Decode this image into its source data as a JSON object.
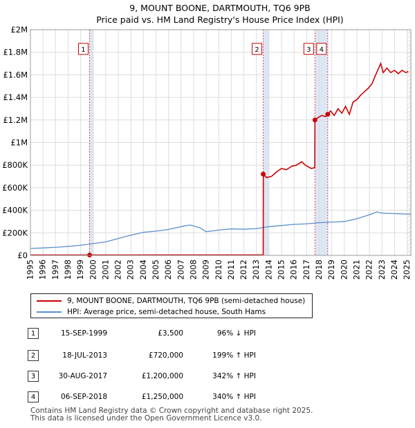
{
  "chart_data": {
    "type": "line",
    "title": "9, MOUNT BOONE, DARTMOUTH, TQ6 9PB",
    "subtitle": "Price paid vs. HM Land Registry's House Price Index (HPI)",
    "x_range": [
      1995,
      2025.3
    ],
    "ylim": [
      0,
      2000000
    ],
    "y_ticks": [
      0,
      200000,
      400000,
      600000,
      800000,
      1000000,
      1200000,
      1400000,
      1600000,
      1800000,
      2000000
    ],
    "y_tick_labels": [
      "£0",
      "£200K",
      "£400K",
      "£600K",
      "£800K",
      "£1M",
      "£1.2M",
      "£1.4M",
      "£1.6M",
      "£1.8M",
      "£2M"
    ],
    "x_ticks": [
      1995,
      1996,
      1997,
      1998,
      1999,
      2000,
      2001,
      2002,
      2003,
      2004,
      2005,
      2006,
      2007,
      2008,
      2009,
      2010,
      2011,
      2012,
      2013,
      2014,
      2015,
      2016,
      2017,
      2018,
      2019,
      2020,
      2021,
      2022,
      2023,
      2024,
      2025
    ],
    "colors": {
      "property": "#cc0000",
      "hpi": "#5b8fcc",
      "band": "#dde6f5",
      "grid": "#dddddd"
    },
    "series": [
      {
        "name": "9, MOUNT BOONE, DARTMOUTH, TQ6 9PB (semi-detached house)",
        "color": "#cc0000",
        "x": [
          1995.0,
          1999.7,
          2002.0,
          2005.0,
          2008.0,
          2010.0,
          2012.0,
          2013.54,
          2013.55,
          2013.8,
          2014.2,
          2014.6,
          2015.0,
          2015.4,
          2015.8,
          2016.2,
          2016.6,
          2016.9,
          2017.2,
          2017.4,
          2017.65,
          2017.66,
          2017.9,
          2018.2,
          2018.5,
          2018.68,
          2018.9,
          2019.2,
          2019.5,
          2019.8,
          2020.1,
          2020.4,
          2020.7,
          2021.0,
          2021.3,
          2021.6,
          2021.9,
          2022.2,
          2022.5,
          2022.7,
          2022.9,
          2023.1,
          2023.4,
          2023.7,
          2024.0,
          2024.3,
          2024.6,
          2024.9,
          2025.1
        ],
        "values": [
          3200,
          3500,
          3700,
          3900,
          4000,
          3900,
          4000,
          4200,
          720000,
          690000,
          700000,
          740000,
          770000,
          760000,
          790000,
          800000,
          830000,
          800000,
          780000,
          770000,
          780000,
          1200000,
          1220000,
          1240000,
          1230000,
          1250000,
          1280000,
          1240000,
          1300000,
          1260000,
          1320000,
          1250000,
          1360000,
          1380000,
          1420000,
          1450000,
          1480000,
          1520000,
          1600000,
          1650000,
          1700000,
          1620000,
          1660000,
          1620000,
          1640000,
          1610000,
          1640000,
          1620000,
          1630000
        ]
      },
      {
        "name": "HPI: Average price, semi-detached house, South Hams",
        "color": "#5b8fcc",
        "x": [
          1995,
          1996,
          1997,
          1998,
          1999,
          2000,
          2001,
          2002,
          2003,
          2004,
          2005,
          2006,
          2007,
          2007.7,
          2008.5,
          2009,
          2010,
          2011,
          2012,
          2013,
          2014,
          2015,
          2016,
          2017,
          2018,
          2019,
          2020,
          2021,
          2022,
          2022.6,
          2023,
          2024,
          2025.3
        ],
        "values": [
          62000,
          66000,
          72000,
          80000,
          90000,
          105000,
          120000,
          150000,
          180000,
          205000,
          215000,
          230000,
          255000,
          270000,
          245000,
          210000,
          225000,
          235000,
          232000,
          238000,
          255000,
          265000,
          275000,
          280000,
          290000,
          295000,
          300000,
          325000,
          360000,
          385000,
          375000,
          370000,
          365000
        ]
      }
    ],
    "sales": [
      {
        "id": "1",
        "x": 1999.71,
        "value": 3500
      },
      {
        "id": "2",
        "x": 2013.54,
        "value": 720000
      },
      {
        "id": "3",
        "x": 2017.66,
        "value": 1200000
      },
      {
        "id": "4",
        "x": 2018.68,
        "value": 1250000
      }
    ],
    "shaded_periods": [
      [
        1999.71,
        2000.0
      ],
      [
        2013.54,
        2014.0
      ],
      [
        2017.66,
        2018.68
      ]
    ],
    "hatched_from": 2025.0
  },
  "legend": {
    "property_label": "9, MOUNT BOONE, DARTMOUTH, TQ6 9PB (semi-detached house)",
    "hpi_label": "HPI: Average price, semi-detached house, South Hams"
  },
  "sales_table": [
    {
      "num": "1",
      "date": "15-SEP-1999",
      "price": "£3,500",
      "hpi": "96% ↓ HPI"
    },
    {
      "num": "2",
      "date": "18-JUL-2013",
      "price": "£720,000",
      "hpi": "199% ↑ HPI"
    },
    {
      "num": "3",
      "date": "30-AUG-2017",
      "price": "£1,200,000",
      "hpi": "342% ↑ HPI"
    },
    {
      "num": "4",
      "date": "06-SEP-2018",
      "price": "£1,250,000",
      "hpi": "340% ↑ HPI"
    }
  ],
  "footer": {
    "line1": "Contains HM Land Registry data © Crown copyright and database right 2025.",
    "line2": "This data is licensed under the Open Government Licence v3.0."
  }
}
